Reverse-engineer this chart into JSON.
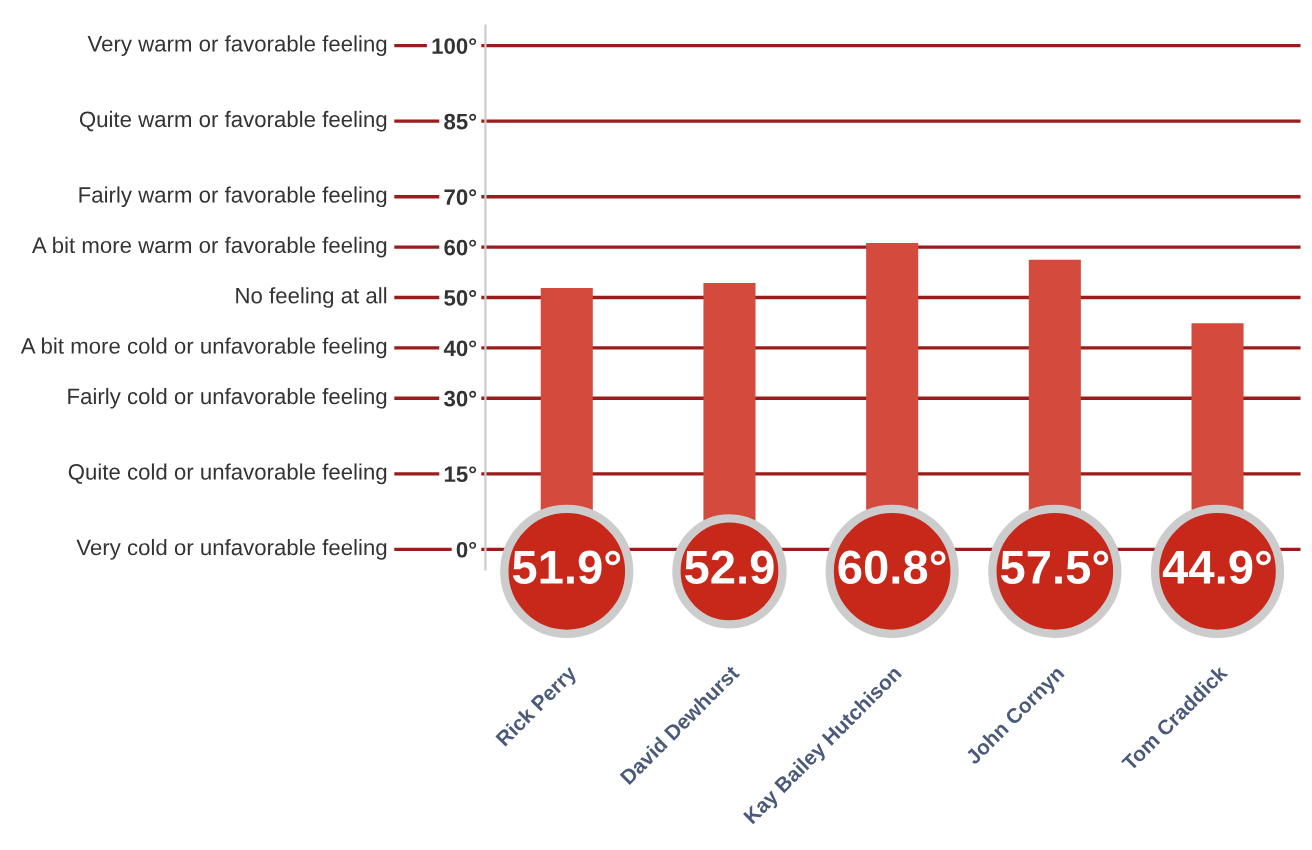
{
  "chart_data": {
    "type": "bar",
    "categories": [
      "Rick Perry",
      "David Dewhurst",
      "Kay Bailey Hutchison",
      "John Cornyn",
      "Tom Craddick"
    ],
    "values": [
      51.9,
      52.9,
      60.8,
      57.5,
      44.9
    ],
    "value_labels": [
      "51.9°",
      "52.9",
      "60.8°",
      "57.5°",
      "44.9°"
    ],
    "color": "#d44a3c",
    "ylim": [
      -4,
      104
    ],
    "yticks": [
      {
        "value": 0,
        "label": "0°"
      },
      {
        "value": 15,
        "label": "15°"
      },
      {
        "value": 30,
        "label": "30°"
      },
      {
        "value": 40,
        "label": "40°"
      },
      {
        "value": 50,
        "label": "50°"
      },
      {
        "value": 60,
        "label": "60°"
      },
      {
        "value": 70,
        "label": "70°"
      },
      {
        "value": 85,
        "label": "85°"
      },
      {
        "value": 100,
        "label": "100°"
      }
    ],
    "ref_lines": [
      {
        "axis": "y",
        "value": 0,
        "label": "Very cold or unfavorable feeling",
        "color": "#9b1c1c"
      },
      {
        "axis": "y",
        "value": 15,
        "label": "Quite cold or unfavorable feeling",
        "color": "#9b1c1c"
      },
      {
        "axis": "y",
        "value": 30,
        "label": "Fairly cold or unfavorable feeling",
        "color": "#9b1c1c"
      },
      {
        "axis": "y",
        "value": 40,
        "label": "A bit more cold or unfavorable feeling",
        "color": "#9b1c1c"
      },
      {
        "axis": "y",
        "value": 50,
        "label": "No feeling at all",
        "color": "#9b1c1c"
      },
      {
        "axis": "y",
        "value": 60,
        "label": "A bit more warm or favorable feeling",
        "color": "#9b1c1c"
      },
      {
        "axis": "y",
        "value": 70,
        "label": "Fairly warm or favorable feeling",
        "color": "#9b1c1c"
      },
      {
        "axis": "y",
        "value": 85,
        "label": "Quite warm or favorable feeling",
        "color": "#9b1c1c"
      },
      {
        "axis": "y",
        "value": 100,
        "label": "Very warm or favorable feeling",
        "color": "#9b1c1c"
      }
    ]
  }
}
